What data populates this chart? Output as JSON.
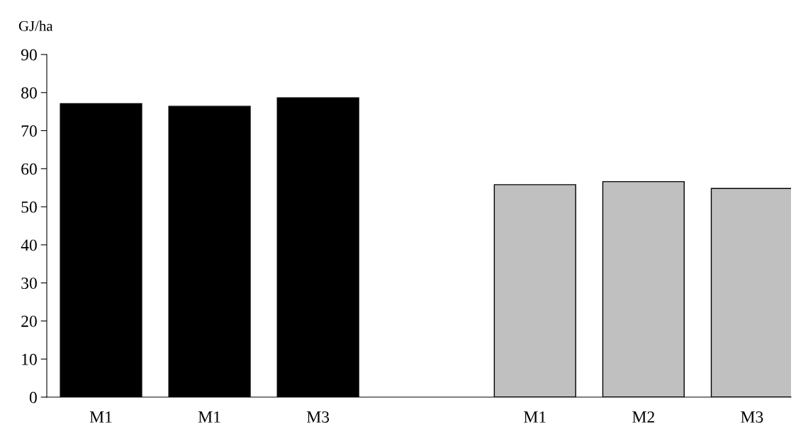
{
  "chart_data": {
    "type": "bar",
    "ylabel": "GJ/ha",
    "categories": [
      "M1",
      "M1",
      "M3",
      null,
      "M1",
      "M2",
      "M3"
    ],
    "values": [
      77.1,
      76.4,
      78.6,
      null,
      55.8,
      56.6,
      54.8
    ],
    "colors": [
      "#000000",
      "#000000",
      "#000000",
      "#ffffff",
      "#c0c0c0",
      "#c0c0c0",
      "#c0c0c0"
    ],
    "ylim": [
      0,
      90
    ],
    "yticks": [
      0,
      10,
      20,
      30,
      40,
      50,
      60,
      70,
      80,
      90
    ],
    "grid": false,
    "legend": false
  }
}
